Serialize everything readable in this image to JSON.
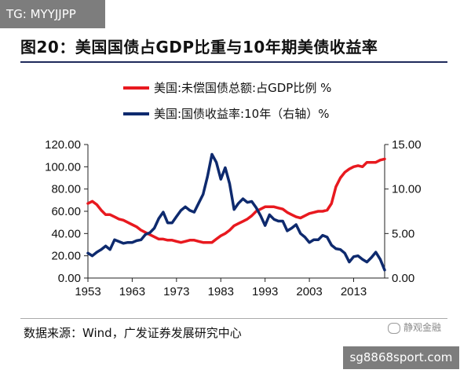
{
  "watermark_tag": "TG: MYYJJPP",
  "title": "图20：美国国债占GDP比重与10年期美债收益率",
  "source": "数据来源：Wind，广发证券发展研究中心",
  "brand_watermark": "静观金融",
  "site_watermark": "sg8868sport.com",
  "chart_data": {
    "type": "line",
    "xlabel": "",
    "ylabel": "",
    "x_ticks": [
      "1953",
      "1963",
      "1973",
      "1983",
      "1993",
      "2003",
      "2013"
    ],
    "xlim": [
      1953,
      2020
    ],
    "y_left": {
      "lim": [
        0,
        120
      ],
      "ticks": [
        "0.00",
        "20.00",
        "40.00",
        "60.00",
        "80.00",
        "100.00",
        "120.00"
      ]
    },
    "y_right": {
      "lim": [
        0,
        15
      ],
      "ticks": [
        "0.00",
        "5.00",
        "10.00",
        "15.00"
      ]
    },
    "legend_position": "top",
    "series": [
      {
        "name": "美国:未偿国债总额:占GDP比例 %",
        "axis": "left",
        "color": "#e8191f",
        "x": [
          1953,
          1954,
          1955,
          1956,
          1957,
          1958,
          1959,
          1960,
          1961,
          1962,
          1963,
          1964,
          1965,
          1966,
          1967,
          1968,
          1969,
          1970,
          1971,
          1972,
          1973,
          1974,
          1975,
          1976,
          1977,
          1978,
          1979,
          1980,
          1981,
          1982,
          1983,
          1984,
          1985,
          1986,
          1987,
          1988,
          1989,
          1990,
          1991,
          1992,
          1993,
          1994,
          1995,
          1996,
          1997,
          1998,
          1999,
          2000,
          2001,
          2002,
          2003,
          2004,
          2005,
          2006,
          2007,
          2008,
          2009,
          2010,
          2011,
          2012,
          2013,
          2014,
          2015,
          2016,
          2017,
          2018,
          2019,
          2020
        ],
        "values": [
          67,
          69,
          66,
          61,
          57,
          57,
          55,
          53,
          52,
          50,
          48,
          46,
          43,
          41,
          39,
          37,
          35,
          35,
          34,
          34,
          33,
          32,
          33,
          34,
          34,
          33,
          32,
          32,
          32,
          35,
          38,
          40,
          43,
          47,
          49,
          51,
          53,
          56,
          60,
          62,
          64,
          64,
          64,
          63,
          62,
          59,
          57,
          55,
          54,
          56,
          58,
          59,
          60,
          60,
          61,
          67,
          82,
          90,
          95,
          98,
          100,
          101,
          100,
          104,
          104,
          104,
          106,
          107
        ]
      },
      {
        "name": "美国:国债收益率:10年（右轴）%",
        "axis": "right",
        "color": "#0e2a6e",
        "x": [
          1953,
          1954,
          1955,
          1956,
          1957,
          1958,
          1959,
          1960,
          1961,
          1962,
          1963,
          1964,
          1965,
          1966,
          1967,
          1968,
          1969,
          1970,
          1971,
          1972,
          1973,
          1974,
          1975,
          1976,
          1977,
          1978,
          1979,
          1980,
          1981,
          1982,
          1983,
          1984,
          1985,
          1986,
          1987,
          1988,
          1989,
          1990,
          1991,
          1992,
          1993,
          1994,
          1995,
          1996,
          1997,
          1998,
          1999,
          2000,
          2001,
          2002,
          2003,
          2004,
          2005,
          2006,
          2007,
          2008,
          2009,
          2010,
          2011,
          2012,
          2013,
          2014,
          2015,
          2016,
          2017,
          2018,
          2019,
          2020
        ],
        "values": [
          2.8,
          2.5,
          2.9,
          3.2,
          3.6,
          3.2,
          4.3,
          4.1,
          3.9,
          4.0,
          4.0,
          4.2,
          4.3,
          4.9,
          5.1,
          5.6,
          6.7,
          7.4,
          6.2,
          6.2,
          6.9,
          7.6,
          8.0,
          7.6,
          7.4,
          8.4,
          9.4,
          11.4,
          13.9,
          13.0,
          11.1,
          12.4,
          10.6,
          7.7,
          8.4,
          8.9,
          8.5,
          8.6,
          7.9,
          7.0,
          5.9,
          7.1,
          6.6,
          6.4,
          6.4,
          5.3,
          5.6,
          6.0,
          5.0,
          4.6,
          4.0,
          4.3,
          4.3,
          4.8,
          4.6,
          3.7,
          3.3,
          3.2,
          2.8,
          1.8,
          2.4,
          2.5,
          2.1,
          1.8,
          2.3,
          2.9,
          2.1,
          0.9
        ]
      }
    ]
  }
}
